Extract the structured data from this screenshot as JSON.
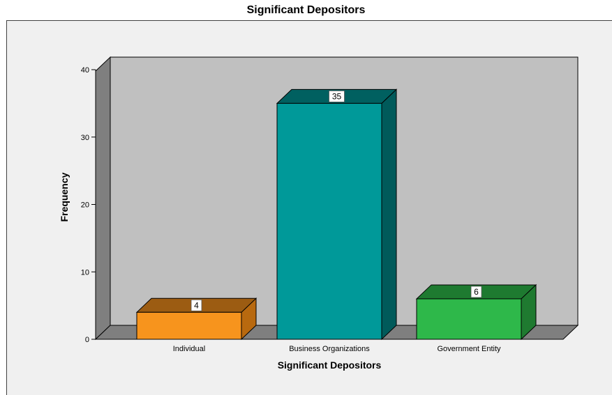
{
  "chart_data": {
    "type": "bar",
    "title": "Significant Depositors",
    "xlabel": "Significant Depositors",
    "ylabel": "Frequency",
    "categories": [
      "Individual",
      "Business Organizations",
      "Government Entity"
    ],
    "values": [
      4,
      35,
      6
    ],
    "data_labels": [
      "4",
      "35",
      "6"
    ],
    "ylim": [
      0,
      40
    ],
    "yticks": [
      0,
      10,
      20,
      30,
      40
    ],
    "ytick_labels": [
      "0",
      "10",
      "20",
      "30",
      "40"
    ],
    "style": "3d",
    "grid": false,
    "colors": {
      "bars": [
        "#f7941d",
        "#009999",
        "#2eb84a"
      ],
      "bars_top": [
        "#9c5c12",
        "#006060",
        "#1e7a30"
      ],
      "bars_side": [
        "#b8690f",
        "#005a5a",
        "#1f7a30"
      ],
      "back_wall": "#c0c0c0",
      "side_wall": "#7f7f7f",
      "floor": "#7f7f7f",
      "frame_background": "#f0f0f0"
    }
  }
}
